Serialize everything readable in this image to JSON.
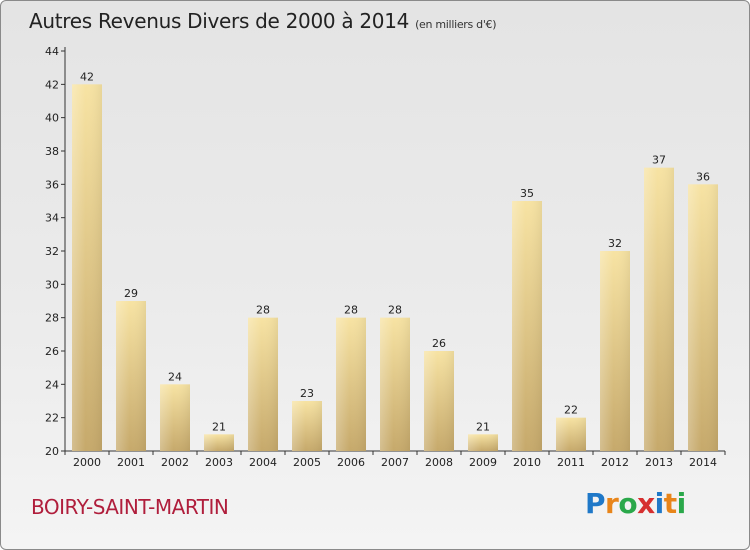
{
  "header": {
    "title": "Autres Revenus Divers de 2000 à 2014",
    "subtitle": "(en milliers d'€)"
  },
  "footer": {
    "commune": "BOIRY-SAINT-MARTIN",
    "brand_letters": [
      "P",
      "r",
      "o",
      "x",
      "i",
      "t",
      "i"
    ],
    "brand_text": "Proxiti"
  },
  "colors": {
    "bar_top": "#f7e3a3",
    "bar_bottom": "#c6a96b",
    "commune": "#b01e3c",
    "brand": [
      "#1f78c8",
      "#e8851a",
      "#2aa84a",
      "#d62f2f",
      "#1f78c8",
      "#e8851a",
      "#2aa84a"
    ]
  },
  "chart_data": {
    "type": "bar",
    "title": "Autres Revenus Divers de 2000 à 2014",
    "subtitle": "(en milliers d'€)",
    "categories": [
      "2000",
      "2001",
      "2002",
      "2003",
      "2004",
      "2005",
      "2006",
      "2007",
      "2008",
      "2009",
      "2010",
      "2011",
      "2012",
      "2013",
      "2014"
    ],
    "values": [
      42,
      29,
      24,
      21,
      28,
      23,
      28,
      28,
      26,
      21,
      35,
      22,
      32,
      37,
      36
    ],
    "ylim": [
      20,
      44
    ],
    "yticks": [
      20,
      22,
      24,
      26,
      28,
      30,
      32,
      34,
      36,
      38,
      40,
      42,
      44
    ],
    "xlabel": "",
    "ylabel": "",
    "grid": false,
    "data_labels": true
  }
}
